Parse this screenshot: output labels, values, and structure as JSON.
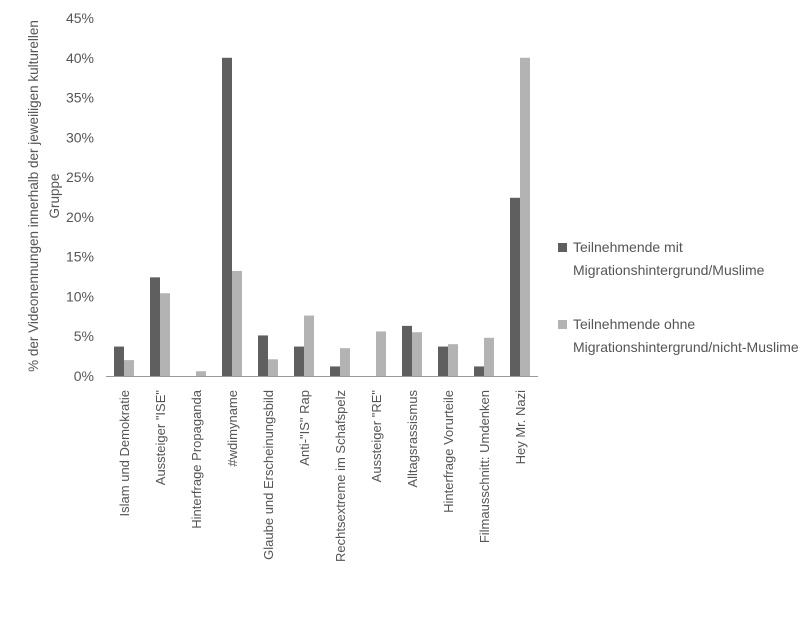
{
  "chart_data": {
    "type": "bar",
    "ylabel": "% der Videonennungen innerhalb der jeweiligen kulturellen Gruppe",
    "xlabel": "",
    "ylim": [
      0,
      45
    ],
    "yticks": [
      "0%",
      "5%",
      "10%",
      "15%",
      "20%",
      "25%",
      "30%",
      "35%",
      "40%",
      "45%"
    ],
    "categories": [
      "Islam und Demokratie",
      "Aussteiger \"ISE\"",
      "Hinterfrage Propaganda",
      "#wdimyname",
      "Glaube und Erscheinungsbild",
      "Anti-\"IS\" Rap",
      "Rechtsextreme im Schafspelz",
      "Aussteiger \"RE\"",
      "Alltagsrassismus",
      "Hinterfrage Vorurteile",
      "Filmausschnitt: Umdenken",
      "Hey Mr. Nazi"
    ],
    "series": [
      {
        "name": "Teilnehmende mit Migrationshintergrund/Muslime",
        "color": "#5f5f5f",
        "values": [
          3.7,
          12.4,
          0,
          40,
          5.1,
          3.7,
          1.2,
          0,
          6.3,
          3.7,
          1.2,
          22.4
        ]
      },
      {
        "name": "Teilnehmende ohne Migrationshintergrund/nicht-Muslime",
        "color": "#b3b3b3",
        "values": [
          2.0,
          10.4,
          0.6,
          13.2,
          2.1,
          7.6,
          3.5,
          5.6,
          5.5,
          4.0,
          4.8,
          40
        ]
      }
    ],
    "legend_position": "right",
    "grid": false
  }
}
